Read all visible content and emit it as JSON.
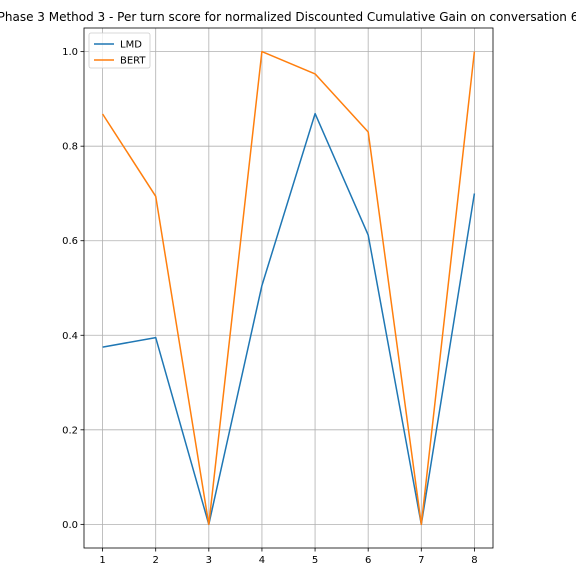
{
  "chart_data": {
    "type": "line",
    "title": "Phase 3 Method 3 - Per turn score for normalized Discounted Cumulative Gain on conversation 6",
    "xlabel": "",
    "ylabel": "",
    "x": [
      1,
      2,
      3,
      4,
      5,
      6,
      7,
      8
    ],
    "xticks": [
      "1",
      "2",
      "3",
      "4",
      "5",
      "6",
      "7",
      "8"
    ],
    "yticks": [
      "0.0",
      "0.2",
      "0.4",
      "0.6",
      "0.8",
      "1.0"
    ],
    "xlim": [
      0.65,
      8.35
    ],
    "ylim": [
      -0.05,
      1.05
    ],
    "grid": true,
    "legend_position": "upper-left",
    "series": [
      {
        "name": "LMD",
        "color": "#1f77b4",
        "values": [
          0.375,
          0.395,
          0.0,
          0.505,
          0.869,
          0.612,
          0.0,
          0.7
        ]
      },
      {
        "name": "BERT",
        "color": "#ff7f0e",
        "values": [
          0.868,
          0.694,
          0.0,
          1.0,
          0.953,
          0.83,
          0.0,
          1.0
        ]
      }
    ]
  }
}
